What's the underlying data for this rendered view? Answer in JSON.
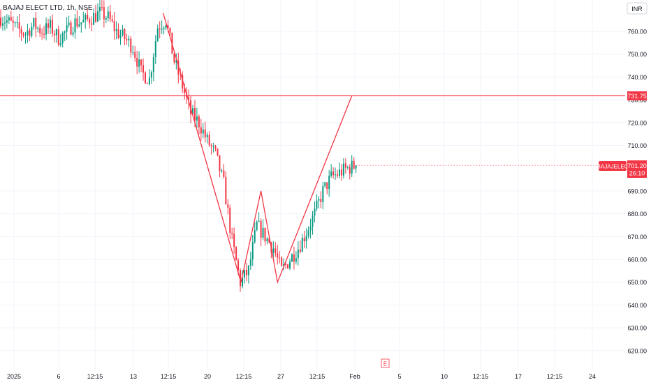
{
  "header": {
    "symbol_title": "BAJAJ ELECT LTD, 1h, NSE"
  },
  "currency_badge": "INR",
  "price_axis_labels": [
    "760.00",
    "750.00",
    "740.00",
    "730.00",
    "720.00",
    "710.00",
    "690.00",
    "680.00",
    "670.00",
    "660.00",
    "650.00",
    "640.00",
    "630.00",
    "620.00"
  ],
  "time_axis_labels": [
    "2025",
    "6",
    "12:15",
    "13",
    "12:15",
    "20",
    "12:15",
    "27",
    "12:15",
    "Feb",
    "5",
    "10",
    "12:15",
    "17",
    "12:15",
    "24"
  ],
  "horizontal_level": {
    "label": "731.75",
    "color": "#f23645"
  },
  "last_price_tag": {
    "ticker": "BAJAJELEC",
    "price": "701.20",
    "countdown": "26:10",
    "color": "#f23645"
  },
  "event_marker": "E",
  "colors": {
    "up": "#089981",
    "down": "#f23645",
    "pattern_line": "#f23645",
    "grid": "#f0f3fa",
    "axis_text": "#131722"
  },
  "chart_data": {
    "type": "line",
    "subtype": "candlestick with drawn chart pattern",
    "ylim": [
      615,
      772
    ],
    "y_ticks": [
      620,
      630,
      640,
      650,
      660,
      670,
      680,
      690,
      700,
      710,
      720,
      730,
      740,
      750,
      760
    ],
    "horizontal_line_value": 731.75,
    "last_price": 701.2,
    "series": [
      {
        "values": [
          [
            0,
            766
          ],
          [
            12,
            764
          ],
          [
            24,
            761
          ],
          [
            36,
            759
          ],
          [
            48,
            763
          ],
          [
            60,
            760
          ],
          [
            72,
            762
          ],
          [
            84,
            757
          ],
          [
            96,
            760
          ],
          [
            108,
            764
          ],
          [
            120,
            764
          ],
          [
            132,
            766
          ],
          [
            144,
            768
          ],
          [
            156,
            766
          ],
          [
            168,
            760
          ],
          [
            180,
            757
          ],
          [
            192,
            753
          ],
          [
            204,
            742
          ],
          [
            216,
            739
          ],
          [
            228,
            762
          ],
          [
            240,
            765
          ],
          [
            252,
            747
          ],
          [
            264,
            736
          ],
          [
            276,
            724
          ],
          [
            288,
            720
          ],
          [
            300,
            712
          ],
          [
            312,
            706
          ],
          [
            324,
            693
          ],
          [
            336,
            668
          ],
          [
            348,
            650
          ],
          [
            360,
            655
          ],
          [
            372,
            675
          ],
          [
            384,
            670
          ],
          [
            396,
            665
          ],
          [
            408,
            655
          ],
          [
            420,
            660
          ],
          [
            432,
            665
          ],
          [
            444,
            672
          ],
          [
            456,
            680
          ],
          [
            468,
            690
          ],
          [
            480,
            696
          ],
          [
            492,
            698
          ],
          [
            504,
            700
          ],
          [
            516,
            701.2
          ]
        ]
      },
      {
        "values": [
          [
            236,
            768
          ],
          [
            349,
            650
          ],
          [
            378,
            690
          ],
          [
            402,
            650
          ],
          [
            510,
            731.75
          ]
        ]
      }
    ]
  }
}
